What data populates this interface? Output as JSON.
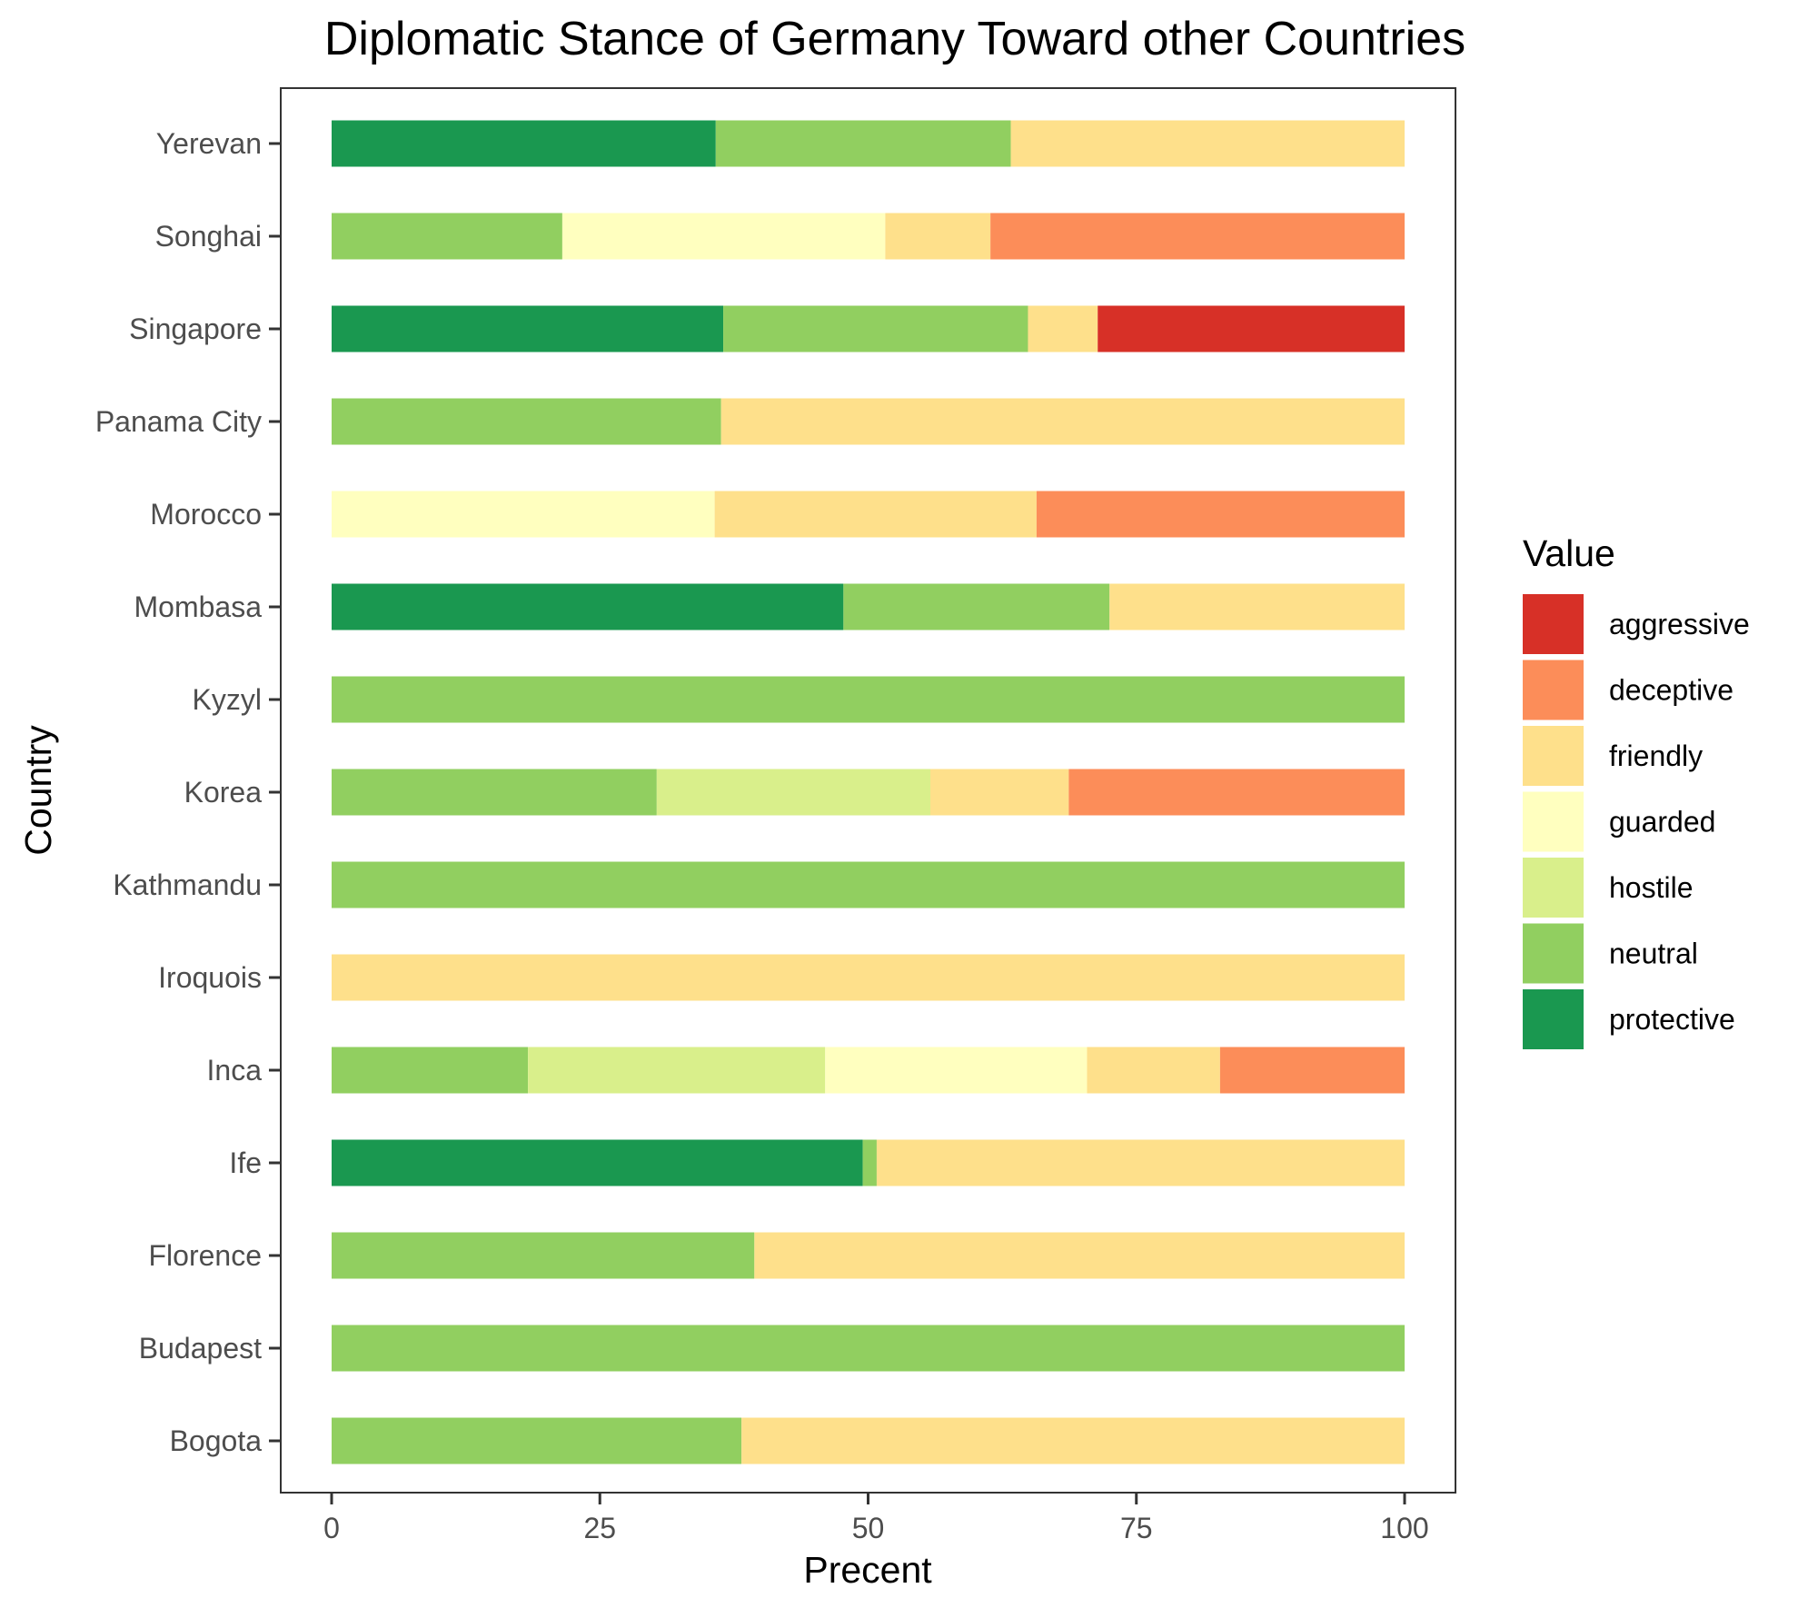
{
  "chart_data": {
    "type": "bar",
    "orientation": "horizontal",
    "stacked": true,
    "title": "Diplomatic Stance of Germany Toward other Countries",
    "xlabel": "Precent",
    "ylabel": "Country",
    "xlim": [
      0,
      100
    ],
    "xticks": [
      "0",
      "25",
      "50",
      "75",
      "100"
    ],
    "grid": false,
    "legend_position": "right",
    "legend_title": "Value",
    "categories": [
      "Bogota",
      "Budapest",
      "Florence",
      "Ife",
      "Inca",
      "Iroquois",
      "Kathmandu",
      "Korea",
      "Kyzyl",
      "Mombasa",
      "Morocco",
      "Panama City",
      "Singapore",
      "Songhai",
      "Yerevan"
    ],
    "series": [
      {
        "name": "protective",
        "color": "#1a9850",
        "values": [
          0,
          0,
          0,
          49.5,
          0,
          0,
          0,
          0,
          0,
          47.7,
          0,
          0,
          36.5,
          0,
          35.8
        ]
      },
      {
        "name": "neutral",
        "color": "#91cf60",
        "values": [
          38.2,
          100,
          39.4,
          1.3,
          18.3,
          0,
          100,
          30.3,
          100,
          24.8,
          0,
          36.3,
          28.4,
          21.5,
          27.5
        ]
      },
      {
        "name": "hostile",
        "color": "#d9ef8b",
        "values": [
          0,
          0,
          0,
          0,
          27.7,
          0,
          0,
          25.5,
          0,
          0,
          0,
          0,
          0,
          0,
          0
        ]
      },
      {
        "name": "guarded",
        "color": "#ffffbf",
        "values": [
          0,
          0,
          0,
          0,
          24.4,
          0,
          0,
          0,
          0,
          0,
          35.7,
          0,
          0,
          30.1,
          0
        ]
      },
      {
        "name": "friendly",
        "color": "#fee08b",
        "values": [
          61.8,
          0,
          60.6,
          49.2,
          12.4,
          100,
          0,
          12.9,
          0,
          27.5,
          30.0,
          63.7,
          6.5,
          9.8,
          36.7
        ]
      },
      {
        "name": "deceptive",
        "color": "#fc8d59",
        "values": [
          0,
          0,
          0,
          0,
          17.2,
          0,
          0,
          31.3,
          0,
          0,
          34.3,
          0,
          0,
          38.6,
          0
        ]
      },
      {
        "name": "aggressive",
        "color": "#d73027",
        "values": [
          0,
          0,
          0,
          0,
          0,
          0,
          0,
          0,
          0,
          0,
          0,
          0,
          28.6,
          0,
          0
        ]
      }
    ],
    "legend_order": [
      "aggressive",
      "deceptive",
      "friendly",
      "guarded",
      "hostile",
      "neutral",
      "protective"
    ]
  }
}
